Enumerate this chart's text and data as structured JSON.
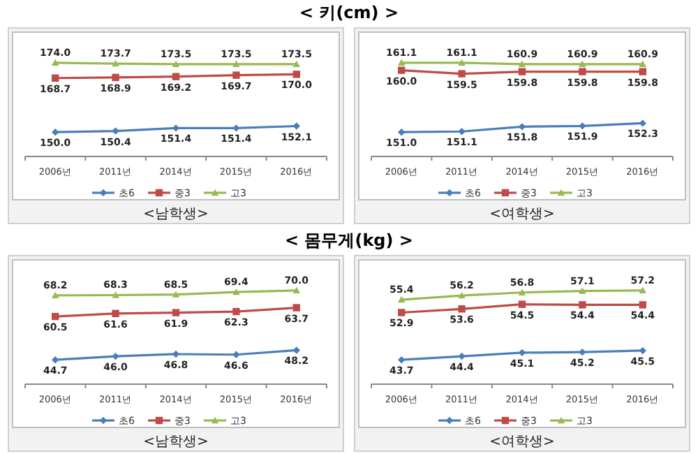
{
  "chart_data": [
    {
      "type": "line",
      "title": "< 키(cm) >",
      "xlabel": "<남학생>",
      "categories": [
        "2006년",
        "2011년",
        "2014년",
        "2015년",
        "2016년"
      ],
      "relative": false,
      "legend": "bottom",
      "grid": false,
      "series": [
        {
          "name": "초6",
          "color": "#4a7ebb",
          "marker": "diamond",
          "values": [
            150.0,
            150.4,
            151.4,
            151.4,
            152.1
          ],
          "value_labels": [
            "150.0",
            "150.4",
            "151.4",
            "151.4",
            "152.1"
          ]
        },
        {
          "name": "중3",
          "color": "#be4b48",
          "marker": "square",
          "values": [
            168.7,
            168.9,
            169.2,
            169.7,
            170.0
          ],
          "value_labels": [
            "168.7",
            "168.9",
            "169.2",
            "169.7",
            "170.0"
          ]
        },
        {
          "name": "고3",
          "color": "#98b954",
          "marker": "triangle",
          "values": [
            174.0,
            173.7,
            173.5,
            173.5,
            173.5
          ],
          "value_labels": [
            "174.0",
            "173.7",
            "173.5",
            "173.5",
            "173.5"
          ]
        }
      ]
    },
    {
      "type": "line",
      "xlabel": "<여학생>",
      "categories": [
        "2006년",
        "2011년",
        "2014년",
        "2015년",
        "2016년"
      ],
      "relative": false,
      "legend": "bottom",
      "grid": false,
      "series": [
        {
          "name": "초6",
          "color": "#4a7ebb",
          "marker": "diamond",
          "values": [
            151.0,
            151.1,
            151.8,
            151.9,
            152.3
          ],
          "value_labels": [
            "151.0",
            "151.1",
            "151.8",
            "151.9",
            "152.3"
          ]
        },
        {
          "name": "중3",
          "color": "#be4b48",
          "marker": "square",
          "values": [
            160.0,
            159.5,
            159.8,
            159.8,
            159.8
          ],
          "value_labels": [
            "160.0",
            "159.5",
            "159.8",
            "159.8",
            "159.8"
          ]
        },
        {
          "name": "고3",
          "color": "#98b954",
          "marker": "triangle",
          "values": [
            161.1,
            161.1,
            160.9,
            160.9,
            160.9
          ],
          "value_labels": [
            "161.1",
            "161.1",
            "160.9",
            "160.9",
            "160.9"
          ]
        }
      ]
    },
    {
      "type": "line",
      "title": "< 몸무게(kg) >",
      "xlabel": "<남학생>",
      "categories": [
        "2006년",
        "2011년",
        "2014년",
        "2015년",
        "2016년"
      ],
      "relative": false,
      "legend": "bottom",
      "grid": false,
      "series": [
        {
          "name": "초6",
          "color": "#4a7ebb",
          "marker": "diamond",
          "values": [
            44.7,
            46.0,
            46.8,
            46.6,
            48.2
          ],
          "value_labels": [
            "44.7",
            "46.0",
            "46.8",
            "46.6",
            "48.2"
          ]
        },
        {
          "name": "중3",
          "color": "#be4b48",
          "marker": "square",
          "values": [
            60.5,
            61.6,
            61.9,
            62.3,
            63.7
          ],
          "value_labels": [
            "60.5",
            "61.6",
            "61.9",
            "62.3",
            "63.7"
          ]
        },
        {
          "name": "고3",
          "color": "#98b954",
          "marker": "triangle",
          "values": [
            68.2,
            68.3,
            68.5,
            69.4,
            70.0
          ],
          "value_labels": [
            "68.2",
            "68.3",
            "68.5",
            "69.4",
            "70.0"
          ]
        }
      ]
    },
    {
      "type": "line",
      "xlabel": "<여학생>",
      "categories": [
        "2006년",
        "2011년",
        "2014년",
        "2015년",
        "2016년"
      ],
      "relative": false,
      "legend": "bottom",
      "grid": false,
      "series": [
        {
          "name": "초6",
          "color": "#4a7ebb",
          "marker": "diamond",
          "values": [
            43.7,
            44.4,
            45.1,
            45.2,
            45.5
          ],
          "value_labels": [
            "43.7",
            "44.4",
            "45.1",
            "45.2",
            "45.5"
          ]
        },
        {
          "name": "중3",
          "color": "#be4b48",
          "marker": "square",
          "values": [
            52.9,
            53.6,
            54.5,
            54.4,
            54.4
          ],
          "value_labels": [
            "52.9",
            "53.6",
            "54.5",
            "54.4",
            "54.4"
          ]
        },
        {
          "name": "고3",
          "color": "#98b954",
          "marker": "triangle",
          "values": [
            55.4,
            56.2,
            56.8,
            57.1,
            57.2
          ],
          "value_labels": [
            "55.4",
            "56.2",
            "56.8",
            "57.1",
            "57.2"
          ]
        }
      ]
    }
  ]
}
